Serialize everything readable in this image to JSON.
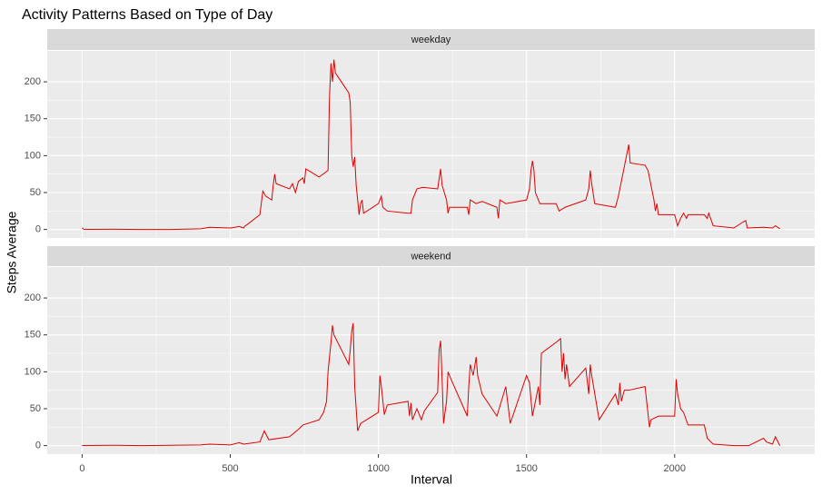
{
  "chart_data": {
    "type": "line",
    "title": "Activity Patterns Based on Type of Day",
    "x_label": "Interval",
    "y_label": "Steps Average",
    "color": "#e00000",
    "xlim": [
      -117.75,
      2472.75
    ],
    "xticks": [
      0,
      500,
      1000,
      1500,
      2000
    ],
    "ylim": [
      -11.5,
      241.9
    ],
    "yticks": [
      0,
      50,
      100,
      150,
      200
    ],
    "grid": true,
    "series": [
      {
        "name": "weekday",
        "x": [
          0,
          5,
          10,
          100,
          200,
          300,
          400,
          430,
          500,
          530,
          545,
          550,
          555,
          600,
          610,
          620,
          640,
          645,
          650,
          655,
          700,
          710,
          720,
          730,
          745,
          750,
          755,
          800,
          830,
          835,
          840,
          845,
          850,
          855,
          900,
          905,
          910,
          915,
          920,
          925,
          930,
          935,
          940,
          945,
          950,
          1000,
          1010,
          1015,
          1030,
          1100,
          1110,
          1115,
          1130,
          1150,
          1200,
          1210,
          1215,
          1230,
          1235,
          1240,
          1300,
          1305,
          1310,
          1330,
          1350,
          1400,
          1405,
          1410,
          1430,
          1500,
          1510,
          1515,
          1520,
          1525,
          1530,
          1545,
          1600,
          1610,
          1630,
          1700,
          1710,
          1715,
          1720,
          1730,
          1800,
          1810,
          1830,
          1845,
          1850,
          1900,
          1910,
          1930,
          1935,
          1940,
          1945,
          2000,
          2010,
          2020,
          2030,
          2040,
          2045,
          2100,
          2110,
          2115,
          2130,
          2200,
          2230,
          2240,
          2245,
          2300,
          2330,
          2340,
          2355
        ],
        "values": [
          2.3,
          0.4,
          0.2,
          0.4,
          0,
          0.1,
          1,
          3,
          2,
          4,
          2,
          5,
          6,
          20,
          52,
          45,
          40,
          60,
          75,
          62,
          55,
          62,
          50,
          65,
          70,
          62,
          82,
          71,
          80,
          180,
          225,
          200,
          230,
          212,
          185,
          172,
          100,
          85,
          98,
          60,
          40,
          20,
          35,
          40,
          22,
          35,
          45,
          30,
          25,
          22,
          22,
          40,
          55,
          57,
          55,
          82,
          60,
          40,
          22,
          30,
          30,
          20,
          40,
          35,
          38,
          30,
          15,
          40,
          35,
          40,
          55,
          80,
          93,
          80,
          50,
          35,
          35,
          25,
          30,
          40,
          55,
          80,
          62,
          35,
          30,
          45,
          85,
          115,
          90,
          87,
          80,
          40,
          25,
          35,
          20,
          20,
          5,
          15,
          22,
          15,
          20,
          20,
          15,
          22,
          5,
          2,
          10,
          12,
          2,
          3,
          2,
          5,
          1
        ]
      },
      {
        "name": "weekend",
        "x": [
          0,
          100,
          200,
          300,
          400,
          430,
          500,
          530,
          545,
          600,
          615,
          630,
          700,
          730,
          745,
          800,
          815,
          825,
          830,
          835,
          840,
          845,
          850,
          900,
          905,
          910,
          915,
          920,
          925,
          930,
          940,
          1000,
          1005,
          1010,
          1020,
          1030,
          1100,
          1105,
          1110,
          1115,
          1130,
          1140,
          1145,
          1155,
          1200,
          1205,
          1210,
          1215,
          1220,
          1230,
          1235,
          1245,
          1300,
          1305,
          1310,
          1320,
          1330,
          1335,
          1350,
          1400,
          1430,
          1445,
          1500,
          1510,
          1520,
          1540,
          1545,
          1550,
          1600,
          1615,
          1620,
          1625,
          1630,
          1635,
          1645,
          1700,
          1710,
          1715,
          1720,
          1745,
          1800,
          1810,
          1815,
          1820,
          1830,
          1845,
          1900,
          1915,
          1920,
          1945,
          2000,
          2005,
          2010,
          2020,
          2030,
          2045,
          2100,
          2110,
          2130,
          2200,
          2250,
          2300,
          2310,
          2330,
          2340,
          2355
        ],
        "values": [
          0.2,
          0.5,
          0,
          0.5,
          1,
          2,
          1,
          4,
          2,
          5,
          20,
          8,
          12,
          22,
          28,
          35,
          45,
          60,
          100,
          120,
          140,
          163,
          150,
          110,
          130,
          155,
          166,
          80,
          50,
          20,
          30,
          45,
          95,
          80,
          42,
          55,
          60,
          40,
          58,
          35,
          50,
          40,
          35,
          47,
          72,
          130,
          142,
          90,
          30,
          60,
          100,
          90,
          40,
          80,
          110,
          95,
          120,
          95,
          70,
          40,
          80,
          30,
          95,
          85,
          40,
          80,
          55,
          125,
          140,
          145,
          100,
          125,
          90,
          110,
          80,
          105,
          70,
          110,
          95,
          35,
          70,
          55,
          85,
          60,
          75,
          75,
          80,
          25,
          35,
          40,
          40,
          90,
          70,
          50,
          45,
          28,
          28,
          10,
          2,
          0,
          0,
          10,
          5,
          2,
          12,
          0
        ]
      }
    ]
  }
}
